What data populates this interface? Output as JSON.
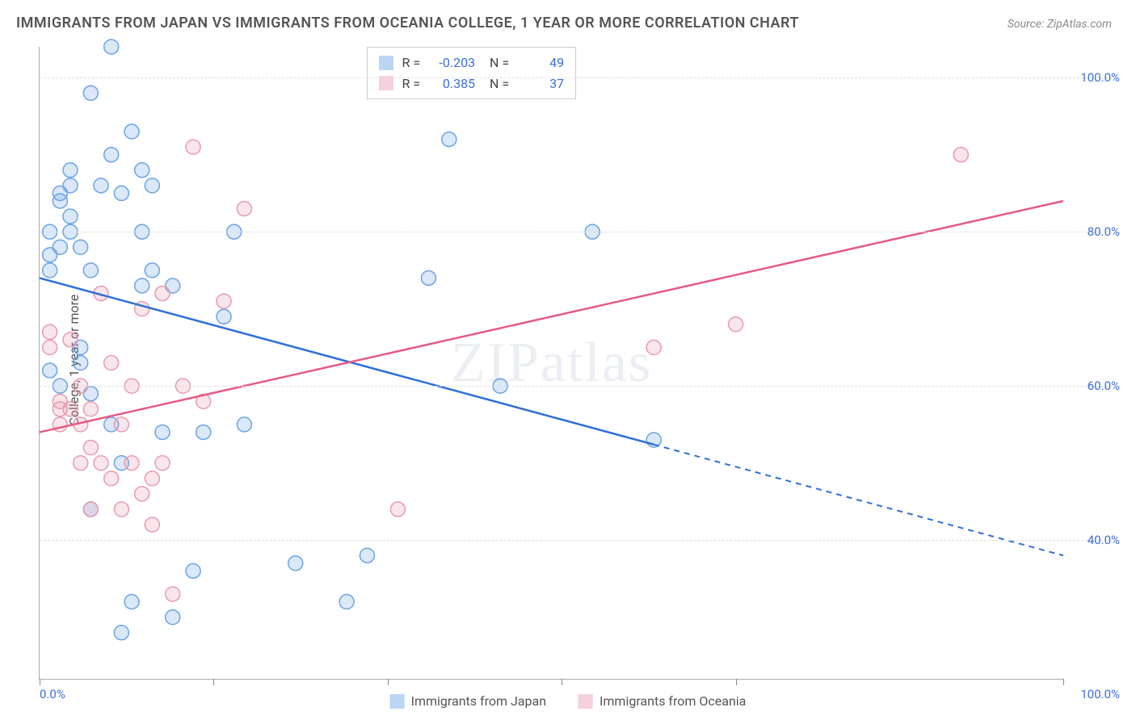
{
  "header": {
    "title": "IMMIGRANTS FROM JAPAN VS IMMIGRANTS FROM OCEANIA COLLEGE, 1 YEAR OR MORE CORRELATION CHART",
    "source_label": "Source: ZipAtlas.com"
  },
  "chart": {
    "type": "scatter",
    "ylabel": "College, 1 year or more",
    "watermark": "ZIPatlas",
    "xlim": [
      0,
      100
    ],
    "ylim": [
      22,
      104
    ],
    "xtick_positions": [
      0,
      17,
      34,
      51,
      68,
      100
    ],
    "xtick_labels_left": "0.0%",
    "xtick_labels_right": "100.0%",
    "ytick_positions": [
      40,
      60,
      80,
      100
    ],
    "ytick_labels": [
      "40.0%",
      "60.0%",
      "80.0%",
      "100.0%"
    ],
    "marker_radius": 9,
    "marker_stroke_width": 1.5,
    "marker_fill_opacity": 0.25,
    "grid_color": "#dddddd",
    "axis_color": "#aaaaaa",
    "tick_label_color": "#3b6fd6",
    "background_color": "#ffffff",
    "series": [
      {
        "name": "Immigrants from Japan",
        "color": "#6aa3e8",
        "line_color": "#2e6fd8",
        "R": "-0.203",
        "N": "49",
        "points": [
          [
            1,
            77
          ],
          [
            1,
            80
          ],
          [
            2,
            78
          ],
          [
            2,
            84
          ],
          [
            2,
            85
          ],
          [
            3,
            80
          ],
          [
            3,
            82
          ],
          [
            3,
            86
          ],
          [
            3,
            88
          ],
          [
            4,
            78
          ],
          [
            1,
            62
          ],
          [
            1,
            75
          ],
          [
            2,
            60
          ],
          [
            4,
            63
          ],
          [
            4,
            65
          ],
          [
            5,
            75
          ],
          [
            5,
            98
          ],
          [
            6,
            86
          ],
          [
            7,
            90
          ],
          [
            7,
            104
          ],
          [
            8,
            50
          ],
          [
            8,
            28
          ],
          [
            8,
            85
          ],
          [
            9,
            32
          ],
          [
            9,
            93
          ],
          [
            10,
            73
          ],
          [
            10,
            80
          ],
          [
            10,
            88
          ],
          [
            11,
            75
          ],
          [
            11,
            86
          ],
          [
            5,
            59
          ],
          [
            5,
            44
          ],
          [
            7,
            55
          ],
          [
            12,
            54
          ],
          [
            13,
            30
          ],
          [
            13,
            73
          ],
          [
            15,
            36
          ],
          [
            16,
            54
          ],
          [
            18,
            69
          ],
          [
            19,
            80
          ],
          [
            20,
            55
          ],
          [
            25,
            37
          ],
          [
            30,
            32
          ],
          [
            32,
            38
          ],
          [
            38,
            74
          ],
          [
            40,
            92
          ],
          [
            45,
            60
          ],
          [
            54,
            80
          ],
          [
            60,
            53
          ]
        ],
        "trend": {
          "x1": 0,
          "y1": 74,
          "x2": 60,
          "y2": 52,
          "x3": 100,
          "y3": 38,
          "solid_until_x": 60
        }
      },
      {
        "name": "Immigrants from Oceania",
        "color": "#e89ab0",
        "line_color": "#e65a84",
        "R": "0.385",
        "N": "37",
        "points": [
          [
            1,
            65
          ],
          [
            1,
            67
          ],
          [
            2,
            57
          ],
          [
            2,
            58
          ],
          [
            2,
            55
          ],
          [
            3,
            57
          ],
          [
            3,
            66
          ],
          [
            4,
            55
          ],
          [
            4,
            60
          ],
          [
            4,
            50
          ],
          [
            5,
            52
          ],
          [
            5,
            57
          ],
          [
            5,
            44
          ],
          [
            6,
            50
          ],
          [
            6,
            72
          ],
          [
            7,
            63
          ],
          [
            7,
            48
          ],
          [
            8,
            55
          ],
          [
            8,
            44
          ],
          [
            9,
            60
          ],
          [
            9,
            50
          ],
          [
            10,
            46
          ],
          [
            10,
            70
          ],
          [
            11,
            42
          ],
          [
            11,
            48
          ],
          [
            12,
            72
          ],
          [
            12,
            50
          ],
          [
            13,
            33
          ],
          [
            14,
            60
          ],
          [
            15,
            91
          ],
          [
            16,
            58
          ],
          [
            18,
            71
          ],
          [
            20,
            83
          ],
          [
            35,
            44
          ],
          [
            60,
            65
          ],
          [
            68,
            68
          ],
          [
            90,
            90
          ]
        ],
        "trend": {
          "x1": 0,
          "y1": 54,
          "x2": 100,
          "y2": 84,
          "solid_until_x": 100
        }
      }
    ]
  },
  "bottom_legend": {
    "item1": "Immigrants from Japan",
    "item2": "Immigrants from Oceania"
  }
}
